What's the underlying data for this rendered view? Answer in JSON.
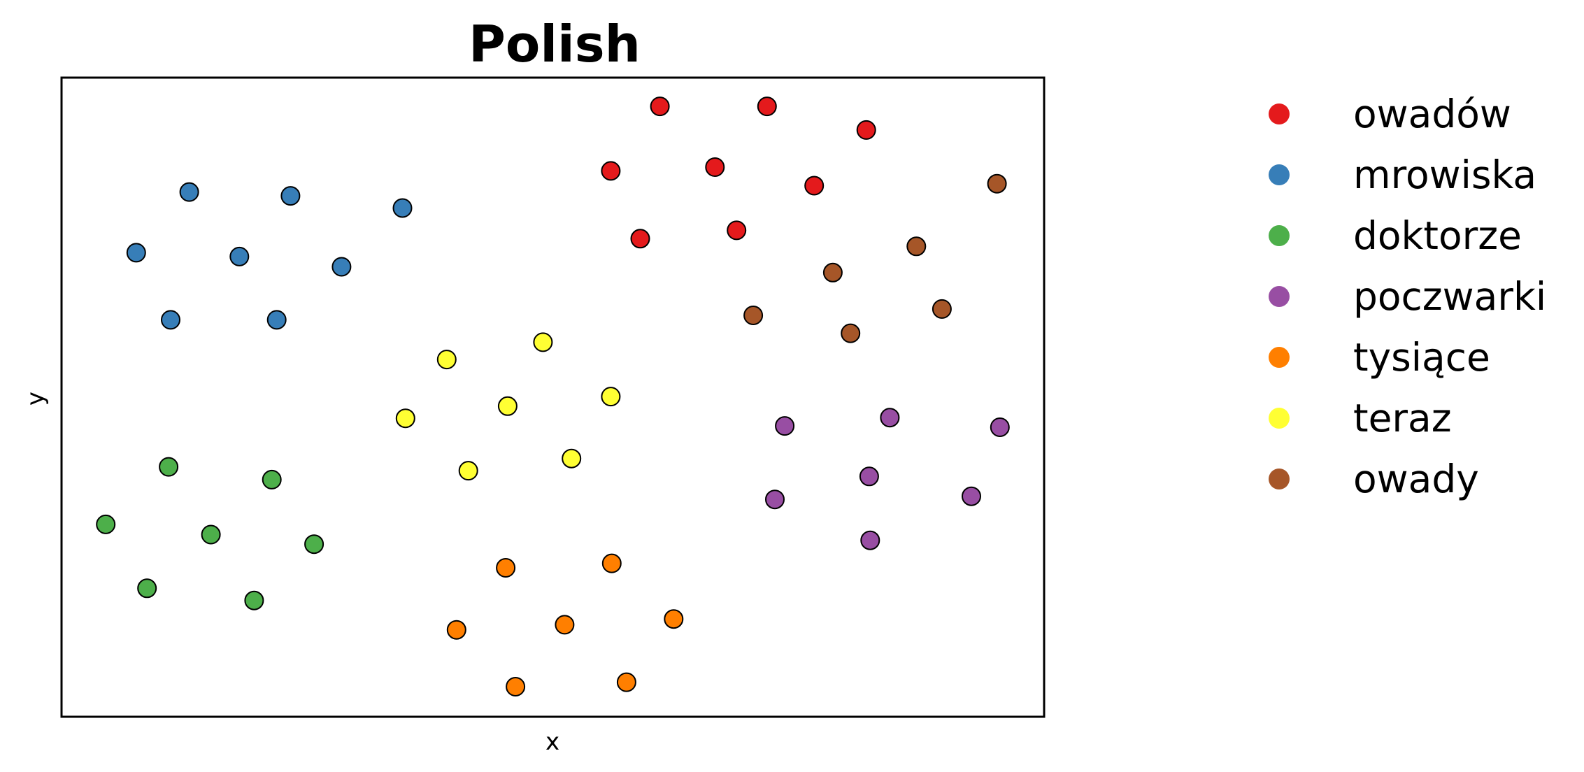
{
  "chart_data": {
    "type": "scatter",
    "title": "Polish",
    "xlabel": "x",
    "ylabel": "y",
    "xlim": [
      0,
      100
    ],
    "ylim": [
      0,
      100
    ],
    "grid": false,
    "legend_placement": "outside-right",
    "series": [
      {
        "name": "owadów",
        "color": "#e41a1c",
        "points": [
          [
            60.9,
            95.5
          ],
          [
            71.8,
            95.5
          ],
          [
            81.9,
            91.8
          ],
          [
            55.9,
            85.4
          ],
          [
            66.5,
            86.0
          ],
          [
            76.6,
            83.1
          ],
          [
            58.9,
            74.8
          ],
          [
            68.7,
            76.1
          ]
        ]
      },
      {
        "name": "mrowiska",
        "color": "#377eb8",
        "points": [
          [
            13.0,
            82.1
          ],
          [
            23.3,
            81.5
          ],
          [
            34.7,
            79.6
          ],
          [
            7.6,
            72.6
          ],
          [
            18.1,
            72.0
          ],
          [
            28.5,
            70.4
          ],
          [
            11.1,
            62.1
          ],
          [
            21.9,
            62.1
          ]
        ]
      },
      {
        "name": "doktorze",
        "color": "#4daf4a",
        "points": [
          [
            10.9,
            39.1
          ],
          [
            21.4,
            37.1
          ],
          [
            4.5,
            30.1
          ],
          [
            15.2,
            28.5
          ],
          [
            25.7,
            27.0
          ],
          [
            8.7,
            20.1
          ],
          [
            19.6,
            18.2
          ]
        ]
      },
      {
        "name": "poczwarki",
        "color": "#984ea3",
        "points": [
          [
            73.6,
            45.5
          ],
          [
            84.3,
            46.8
          ],
          [
            95.5,
            45.3
          ],
          [
            82.2,
            37.6
          ],
          [
            72.6,
            34.0
          ],
          [
            92.6,
            34.5
          ],
          [
            82.3,
            27.6
          ]
        ]
      },
      {
        "name": "tysiące",
        "color": "#ff7f00",
        "points": [
          [
            45.2,
            23.3
          ],
          [
            56.0,
            24.0
          ],
          [
            40.2,
            13.6
          ],
          [
            51.2,
            14.4
          ],
          [
            62.3,
            15.3
          ],
          [
            46.2,
            4.7
          ],
          [
            57.5,
            5.4
          ]
        ]
      },
      {
        "name": "teraz",
        "color": "#ffff33",
        "points": [
          [
            49.0,
            58.6
          ],
          [
            39.2,
            55.9
          ],
          [
            55.9,
            50.1
          ],
          [
            45.4,
            48.6
          ],
          [
            35.0,
            46.7
          ],
          [
            41.4,
            38.5
          ],
          [
            51.9,
            40.4
          ]
        ]
      },
      {
        "name": "owady",
        "color": "#a65628",
        "points": [
          [
            95.2,
            83.4
          ],
          [
            87.0,
            73.6
          ],
          [
            78.5,
            69.5
          ],
          [
            70.4,
            62.8
          ],
          [
            89.6,
            63.8
          ],
          [
            80.3,
            60.0
          ]
        ]
      }
    ]
  }
}
